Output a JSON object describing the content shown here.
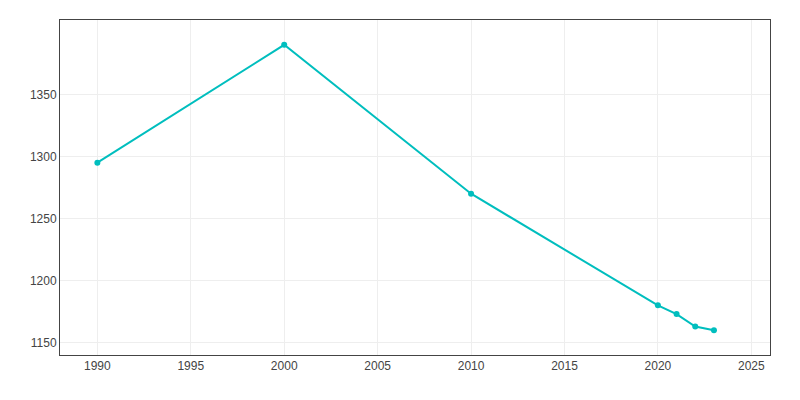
{
  "chart_data": {
    "type": "line",
    "x": [
      1990,
      2000,
      2010,
      2020,
      2021,
      2022,
      2023
    ],
    "values": [
      1295,
      1390,
      1270,
      1180,
      1173,
      1163,
      1160
    ],
    "color": "#00BEBE",
    "marker": "circle",
    "line_style": "solid",
    "xlim": [
      1988,
      2026
    ],
    "ylim": [
      1140,
      1410
    ],
    "xticks": [
      1990,
      1995,
      2000,
      2005,
      2010,
      2015,
      2020,
      2025
    ],
    "yticks": [
      1150,
      1200,
      1250,
      1300,
      1350
    ],
    "grid": true
  }
}
